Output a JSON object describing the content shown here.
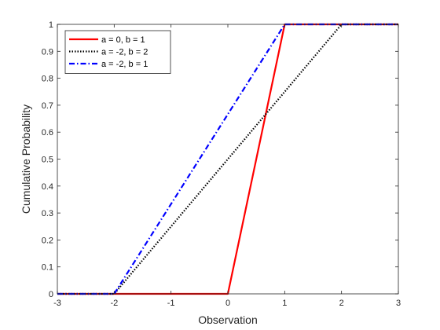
{
  "chart_data": {
    "type": "line",
    "title": "",
    "xlabel": "Observation",
    "ylabel": "Cumulative Probability",
    "xlim": [
      -3,
      3
    ],
    "ylim": [
      0,
      1
    ],
    "xticks": [
      -3,
      -2,
      -1,
      0,
      1,
      2,
      3
    ],
    "yticks": [
      0,
      0.1,
      0.2,
      0.3,
      0.4,
      0.5,
      0.6,
      0.7,
      0.8,
      0.9,
      1
    ],
    "grid": false,
    "legend_position": "top-left",
    "series": [
      {
        "name": "a = 0, b = 1",
        "color": "#ff0000",
        "style": "solid",
        "x": [
          -3,
          0,
          1,
          3
        ],
        "y": [
          0,
          0,
          1,
          1
        ]
      },
      {
        "name": "a = -2, b = 2",
        "color": "#000000",
        "style": "dotted",
        "x": [
          -3,
          -2,
          2,
          3
        ],
        "y": [
          0,
          0,
          1,
          1
        ]
      },
      {
        "name": "a = -2, b = 1",
        "color": "#0000ff",
        "style": "dashdot",
        "x": [
          -3,
          -2,
          1,
          3
        ],
        "y": [
          0,
          0,
          1,
          1
        ]
      }
    ]
  }
}
